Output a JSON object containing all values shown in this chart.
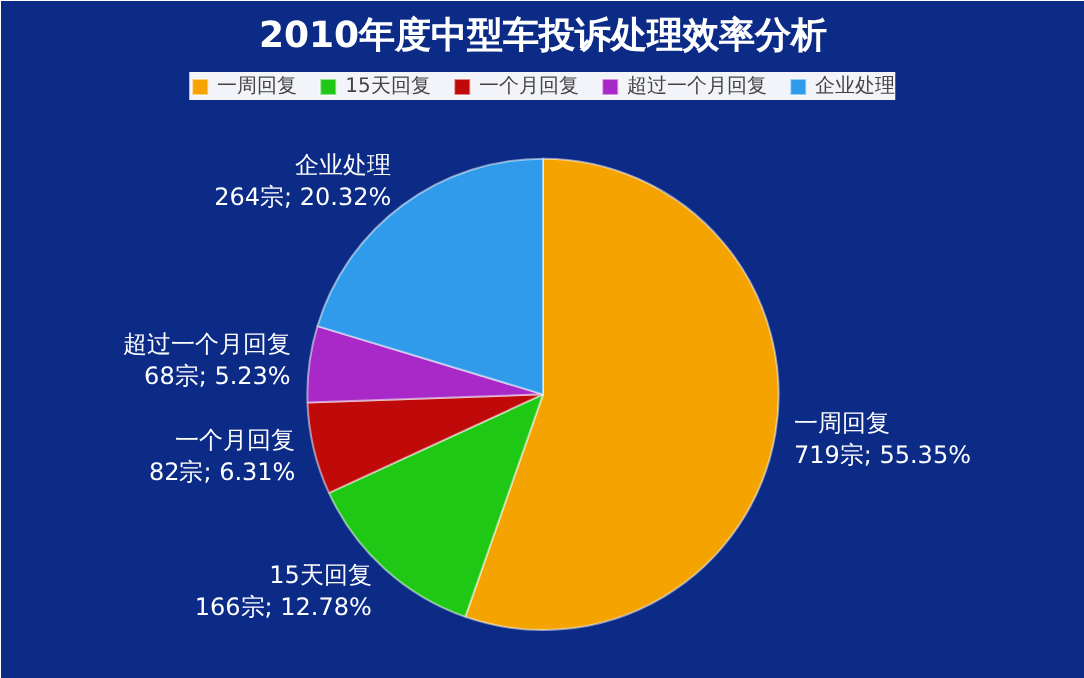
{
  "chart_data": {
    "type": "pie",
    "title": "2010年度中型车投诉处理效率分析",
    "categories": [
      "一周回复",
      "15天回复",
      "一个月回复",
      "超过一个月回复",
      "企业处理"
    ],
    "values": [
      719,
      166,
      82,
      68,
      264
    ],
    "colors": [
      "#f5a300",
      "#1ec814",
      "#c00a0a",
      "#a828c8",
      "#2f9bea"
    ],
    "value_labels": [
      "719宗; 55.35%",
      "166宗; 12.78%",
      "82宗; 6.31%",
      "68宗; 5.23%",
      "264宗; 20.32%"
    ],
    "legend": "top"
  }
}
